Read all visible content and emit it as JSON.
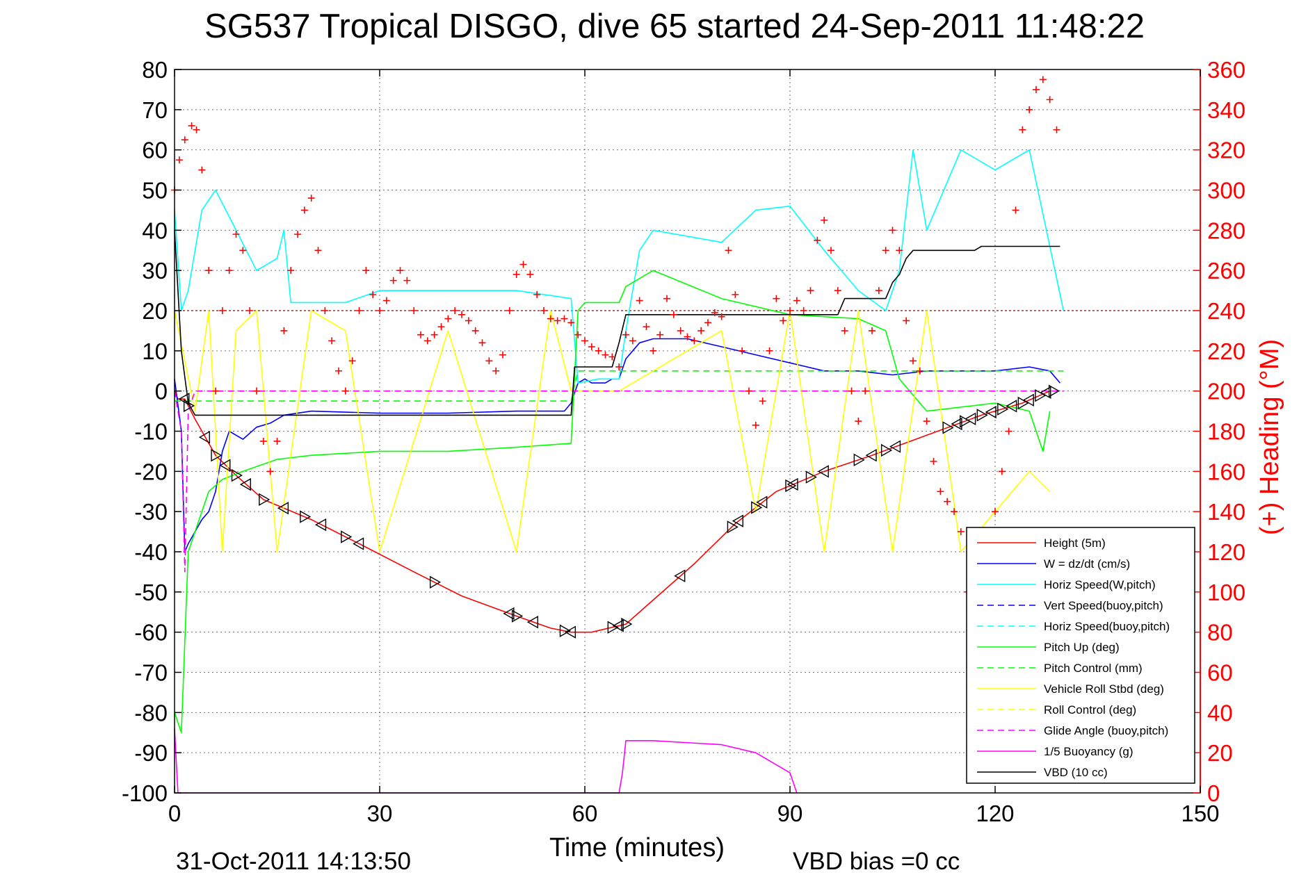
{
  "chart_data": {
    "type": "line",
    "title": "SG537 Tropical DISGO, dive 65 started 24-Sep-2011 11:48:22",
    "xlabel": "Time (minutes)",
    "ylabel": "",
    "y2label": "(+) Heading (°M)",
    "xlim": [
      0,
      150
    ],
    "ylim": [
      -100,
      80
    ],
    "y2lim": [
      0,
      360
    ],
    "xticks": [
      "0",
      "30",
      "60",
      "90",
      "120",
      "150"
    ],
    "yticks": [
      "80",
      "70",
      "60",
      "50",
      "40",
      "30",
      "20",
      "10",
      "0",
      "-10",
      "-20",
      "-30",
      "-40",
      "-50",
      "-60",
      "-70",
      "-80",
      "-90",
      "-100"
    ],
    "y2ticks": [
      "360",
      "340",
      "320",
      "300",
      "280",
      "260",
      "240",
      "220",
      "200",
      "180",
      "160",
      "140",
      "120",
      "100",
      "80",
      "60",
      "40",
      "20",
      "0"
    ],
    "grid": true,
    "legend_position": "bottom-right",
    "colors": {
      "red": "#ff0000",
      "blue": "#0000ff",
      "cyan": "#00ffff",
      "green": "#00ff00",
      "yellow": "#ffff00",
      "magenta": "#ff00ff",
      "black": "#000000"
    },
    "series": [
      {
        "name": "Height (5m)",
        "style": "solid",
        "color": "#ff0000",
        "x": [
          0,
          0.5,
          1.5,
          3,
          6,
          9,
          13,
          20,
          27,
          35,
          42,
          50,
          55,
          58,
          61,
          66,
          70,
          76,
          82,
          88,
          95,
          102,
          110,
          118,
          124,
          128
        ],
        "y": [
          0,
          -2,
          -2,
          -7,
          -16,
          -21,
          -27,
          -32,
          -38,
          -45,
          -51,
          -56,
          -59,
          -60,
          -60,
          -58,
          -52,
          -43,
          -33,
          -25,
          -20,
          -16,
          -11,
          -6,
          -3,
          0
        ]
      },
      {
        "name": "W = dz/dt (cm/s)",
        "style": "solid",
        "color": "#0000ff",
        "x": [
          0,
          1,
          1.5,
          2,
          3,
          4,
          5,
          6,
          7,
          8,
          10,
          12,
          14,
          16,
          20,
          30,
          40,
          50,
          57,
          58,
          59,
          60,
          61,
          62,
          63,
          64,
          65,
          66,
          68,
          70,
          75,
          80,
          85,
          90,
          95,
          100,
          105,
          110,
          115,
          120,
          125,
          128,
          129.5
        ],
        "y": [
          3,
          -10,
          -40,
          -38,
          -35,
          -32,
          -30,
          -25,
          -15,
          -10,
          -12,
          -9,
          -8,
          -6,
          -5,
          -5.5,
          -5.5,
          -5,
          -5,
          -3,
          2,
          3,
          2,
          2,
          2,
          3,
          3,
          8,
          12,
          13,
          13,
          11,
          9,
          7,
          5,
          5,
          4,
          5,
          5,
          5,
          6,
          5,
          2
        ]
      },
      {
        "name": "Horiz Speed(W,pitch)",
        "style": "solid",
        "color": "#00ffff",
        "x": [
          0,
          1,
          2,
          4,
          6,
          9,
          12,
          15,
          16,
          17,
          20,
          25,
          30,
          40,
          50,
          58,
          59,
          62,
          65,
          66,
          68,
          70,
          80,
          85,
          90,
          95,
          100,
          104,
          106,
          108,
          110,
          115,
          120,
          125,
          130
        ],
        "y": [
          45,
          20,
          25,
          45,
          50,
          40,
          30,
          33,
          40,
          22,
          22,
          22,
          25,
          25,
          25,
          23,
          2,
          3,
          3,
          15,
          35,
          40,
          37,
          45,
          46,
          35,
          25,
          20,
          30,
          60,
          40,
          60,
          55,
          60,
          20
        ]
      },
      {
        "name": "Vert Speed(buoy,pitch)",
        "style": "dashed",
        "color": "#0000ff",
        "x": [],
        "y": []
      },
      {
        "name": "Horiz Speed(buoy,pitch)",
        "style": "dashed",
        "color": "#00ffff",
        "x": [],
        "y": []
      },
      {
        "name": "Pitch Up (deg)",
        "style": "solid",
        "color": "#00ff00",
        "x": [
          0,
          1,
          2,
          3,
          5,
          7,
          10,
          15,
          20,
          25,
          30,
          40,
          50,
          58,
          59,
          60,
          65,
          66,
          70,
          80,
          90,
          100,
          104,
          106,
          110,
          120,
          125,
          127,
          128
        ],
        "y": [
          -80,
          -85,
          -40,
          -35,
          -25,
          -22,
          -20,
          -17,
          -16,
          -15.5,
          -15,
          -15,
          -14,
          -13,
          20,
          22,
          22,
          26,
          30,
          23,
          19,
          18,
          15,
          3,
          -5,
          -3,
          -5,
          -15,
          -5
        ]
      },
      {
        "name": "Pitch Control (mm)",
        "style": "dashed",
        "color": "#00ff00",
        "x": [
          0,
          58,
          59,
          130
        ],
        "y": [
          -2.5,
          -2.5,
          5,
          5
        ]
      },
      {
        "name": "Vehicle Roll Stbd (deg)",
        "style": "solid",
        "color": "#ffff00",
        "x": [
          0,
          3,
          5,
          7,
          9,
          12,
          15,
          20,
          25,
          30,
          40,
          50,
          55,
          58,
          60,
          65,
          70,
          75,
          80,
          85,
          90,
          95,
          100,
          105,
          110,
          115,
          120,
          125,
          128
        ],
        "y": [
          20,
          -5,
          20,
          -40,
          15,
          20,
          -40,
          20,
          15,
          -40,
          15,
          -40,
          20,
          0,
          0,
          0,
          5,
          10,
          15,
          -30,
          20,
          -40,
          20,
          -40,
          20,
          -40,
          -30,
          -20,
          -25
        ]
      },
      {
        "name": "Roll Control (deg)",
        "style": "dashed",
        "color": "#ffff00",
        "x": [],
        "y": []
      },
      {
        "name": "Glide Angle (buoy,pitch)",
        "style": "dashed",
        "color": "#ff00ff",
        "x": [
          0,
          1,
          1.5,
          2,
          3,
          130
        ],
        "y": [
          0,
          -10,
          -45,
          -5,
          0,
          0
        ]
      },
      {
        "name": "1/5 Buoyancy (g)",
        "style": "solid",
        "color": "#ff00ff",
        "x": [
          0,
          0.5,
          65,
          65.5,
          66,
          70,
          80,
          85,
          90,
          91
        ],
        "y": [
          -84,
          -100,
          -100,
          -95,
          -87,
          -87,
          -88,
          -90,
          -95,
          -100
        ]
      },
      {
        "name": "VBD (10 cc)",
        "style": "solid",
        "color": "#000000",
        "x": [
          0,
          1,
          2,
          3,
          58,
          58.5,
          64,
          65,
          66,
          80,
          97,
          98,
          104,
          105,
          106,
          107,
          108,
          117,
          118,
          129.5
        ],
        "y": [
          40,
          10,
          -3,
          -6,
          -6,
          6,
          6,
          12,
          19,
          19,
          19,
          23,
          23,
          27,
          29,
          33,
          35,
          35,
          36,
          36
        ]
      }
    ],
    "heading": {
      "name": "Heading",
      "marker": "+",
      "color": "#ff0000",
      "axis": "right",
      "x": [
        0,
        0.7,
        1.5,
        2.5,
        3.2,
        4,
        5,
        6,
        7,
        8,
        9,
        10,
        11,
        12,
        13,
        14,
        15,
        16,
        17,
        18,
        19,
        20,
        21,
        22,
        23,
        24,
        25,
        26,
        27,
        28,
        29,
        30,
        31,
        32,
        33,
        34,
        35,
        36,
        37,
        38,
        39,
        40,
        41,
        42,
        43,
        44,
        45,
        46,
        47,
        48,
        49,
        50,
        51,
        52,
        53,
        54,
        55,
        56,
        57,
        58,
        59,
        60,
        61,
        62,
        63,
        64,
        65,
        66,
        67,
        68,
        69,
        70,
        71,
        72,
        73,
        74,
        75,
        76,
        77,
        78,
        79,
        80,
        81,
        82,
        83,
        84,
        85,
        86,
        87,
        88,
        89,
        90,
        91,
        92,
        93,
        94,
        95,
        96,
        97,
        98,
        99,
        100,
        101,
        102,
        103,
        104,
        105,
        106,
        107,
        108,
        109,
        110,
        111,
        112,
        113,
        114,
        115,
        116,
        117,
        118,
        119,
        120,
        121,
        122,
        123,
        124,
        125,
        126,
        127,
        128,
        129
      ],
      "y": [
        300,
        315,
        325,
        332,
        330,
        310,
        260,
        200,
        240,
        260,
        278,
        270,
        240,
        200,
        175,
        160,
        175,
        230,
        260,
        278,
        290,
        296,
        270,
        240,
        225,
        210,
        200,
        215,
        240,
        260,
        248,
        240,
        245,
        255,
        260,
        255,
        240,
        228,
        225,
        228,
        232,
        236,
        240,
        238,
        235,
        230,
        224,
        215,
        210,
        218,
        240,
        258,
        263,
        258,
        248,
        240,
        236,
        235,
        236,
        234,
        228,
        225,
        222,
        220,
        218,
        217,
        212,
        228,
        225,
        245,
        232,
        220,
        228,
        246,
        238,
        230,
        227,
        225,
        230,
        234,
        239,
        237,
        270,
        248,
        220,
        200,
        183,
        195,
        220,
        246,
        235,
        240,
        245,
        240,
        250,
        275,
        285,
        270,
        250,
        230,
        200,
        185,
        200,
        230,
        250,
        270,
        280,
        270,
        235,
        215,
        210,
        185,
        165,
        150,
        145,
        140,
        130,
        100,
        60,
        30,
        10,
        140,
        160,
        180,
        290,
        330,
        340,
        350,
        355,
        345,
        330
      ]
    },
    "reference_line_y": 20,
    "markers": {
      "name": "triangle markers on height trace",
      "color": "#000000",
      "x": [
        1.5,
        2,
        4.5,
        6,
        7.5,
        9,
        10.5,
        13,
        16,
        19,
        21.5,
        25,
        27,
        38,
        49,
        50,
        52.5,
        57,
        58,
        64,
        65,
        66,
        74,
        81.5,
        82.5,
        85,
        86,
        90,
        90.5,
        93,
        95,
        100,
        102,
        104,
        105.5,
        113,
        114.5,
        115.5,
        116.5,
        118,
        119.5,
        121,
        122.5,
        124,
        125,
        126.5,
        127.5,
        128.5
      ]
    }
  },
  "footer": {
    "date": "31-Oct-2011 14:13:50",
    "vbd_bias": "VBD bias =0 cc"
  }
}
